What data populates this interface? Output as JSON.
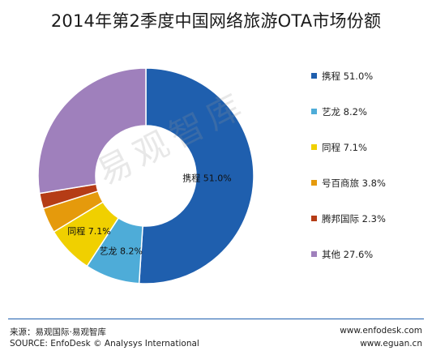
{
  "title": "2014年第2季度中国网络旅游OTA市场份额",
  "chart_data": {
    "type": "pie",
    "title": "2014年第2季度中国网络旅游OTA市场份额",
    "series": [
      {
        "name": "携程",
        "value": 51.0,
        "legend": "携程 51.0%",
        "label": "携程 51.0%",
        "color": "#1f5fae"
      },
      {
        "name": "艺龙",
        "value": 8.2,
        "legend": "艺龙 8.2%",
        "label": "艺龙 8.2%",
        "color": "#4eacd8"
      },
      {
        "name": "同程",
        "value": 7.1,
        "legend": "同程 7.1%",
        "label": "同程 7.1%",
        "color": "#f0d000"
      },
      {
        "name": "号百商旅",
        "value": 3.8,
        "legend": "号百商旅 3.8%",
        "label": "",
        "color": "#e59a0c"
      },
      {
        "name": "腾邦国际",
        "value": 2.3,
        "legend": "腾邦国际 2.3%",
        "label": "",
        "color": "#b53c16"
      },
      {
        "name": "其他",
        "value": 27.6,
        "legend": "其他 27.6%",
        "label": "",
        "color": "#9f80bc"
      }
    ],
    "donut": true,
    "legend_position": "right"
  },
  "watermark": "易观智库",
  "footer": {
    "source_cn": "来源：易观国际·易观智库",
    "source_en": "SOURCE: EnfoDesk © Analysys International",
    "url1": "www.enfodesk.com",
    "url2": "www.eguan.cn"
  }
}
